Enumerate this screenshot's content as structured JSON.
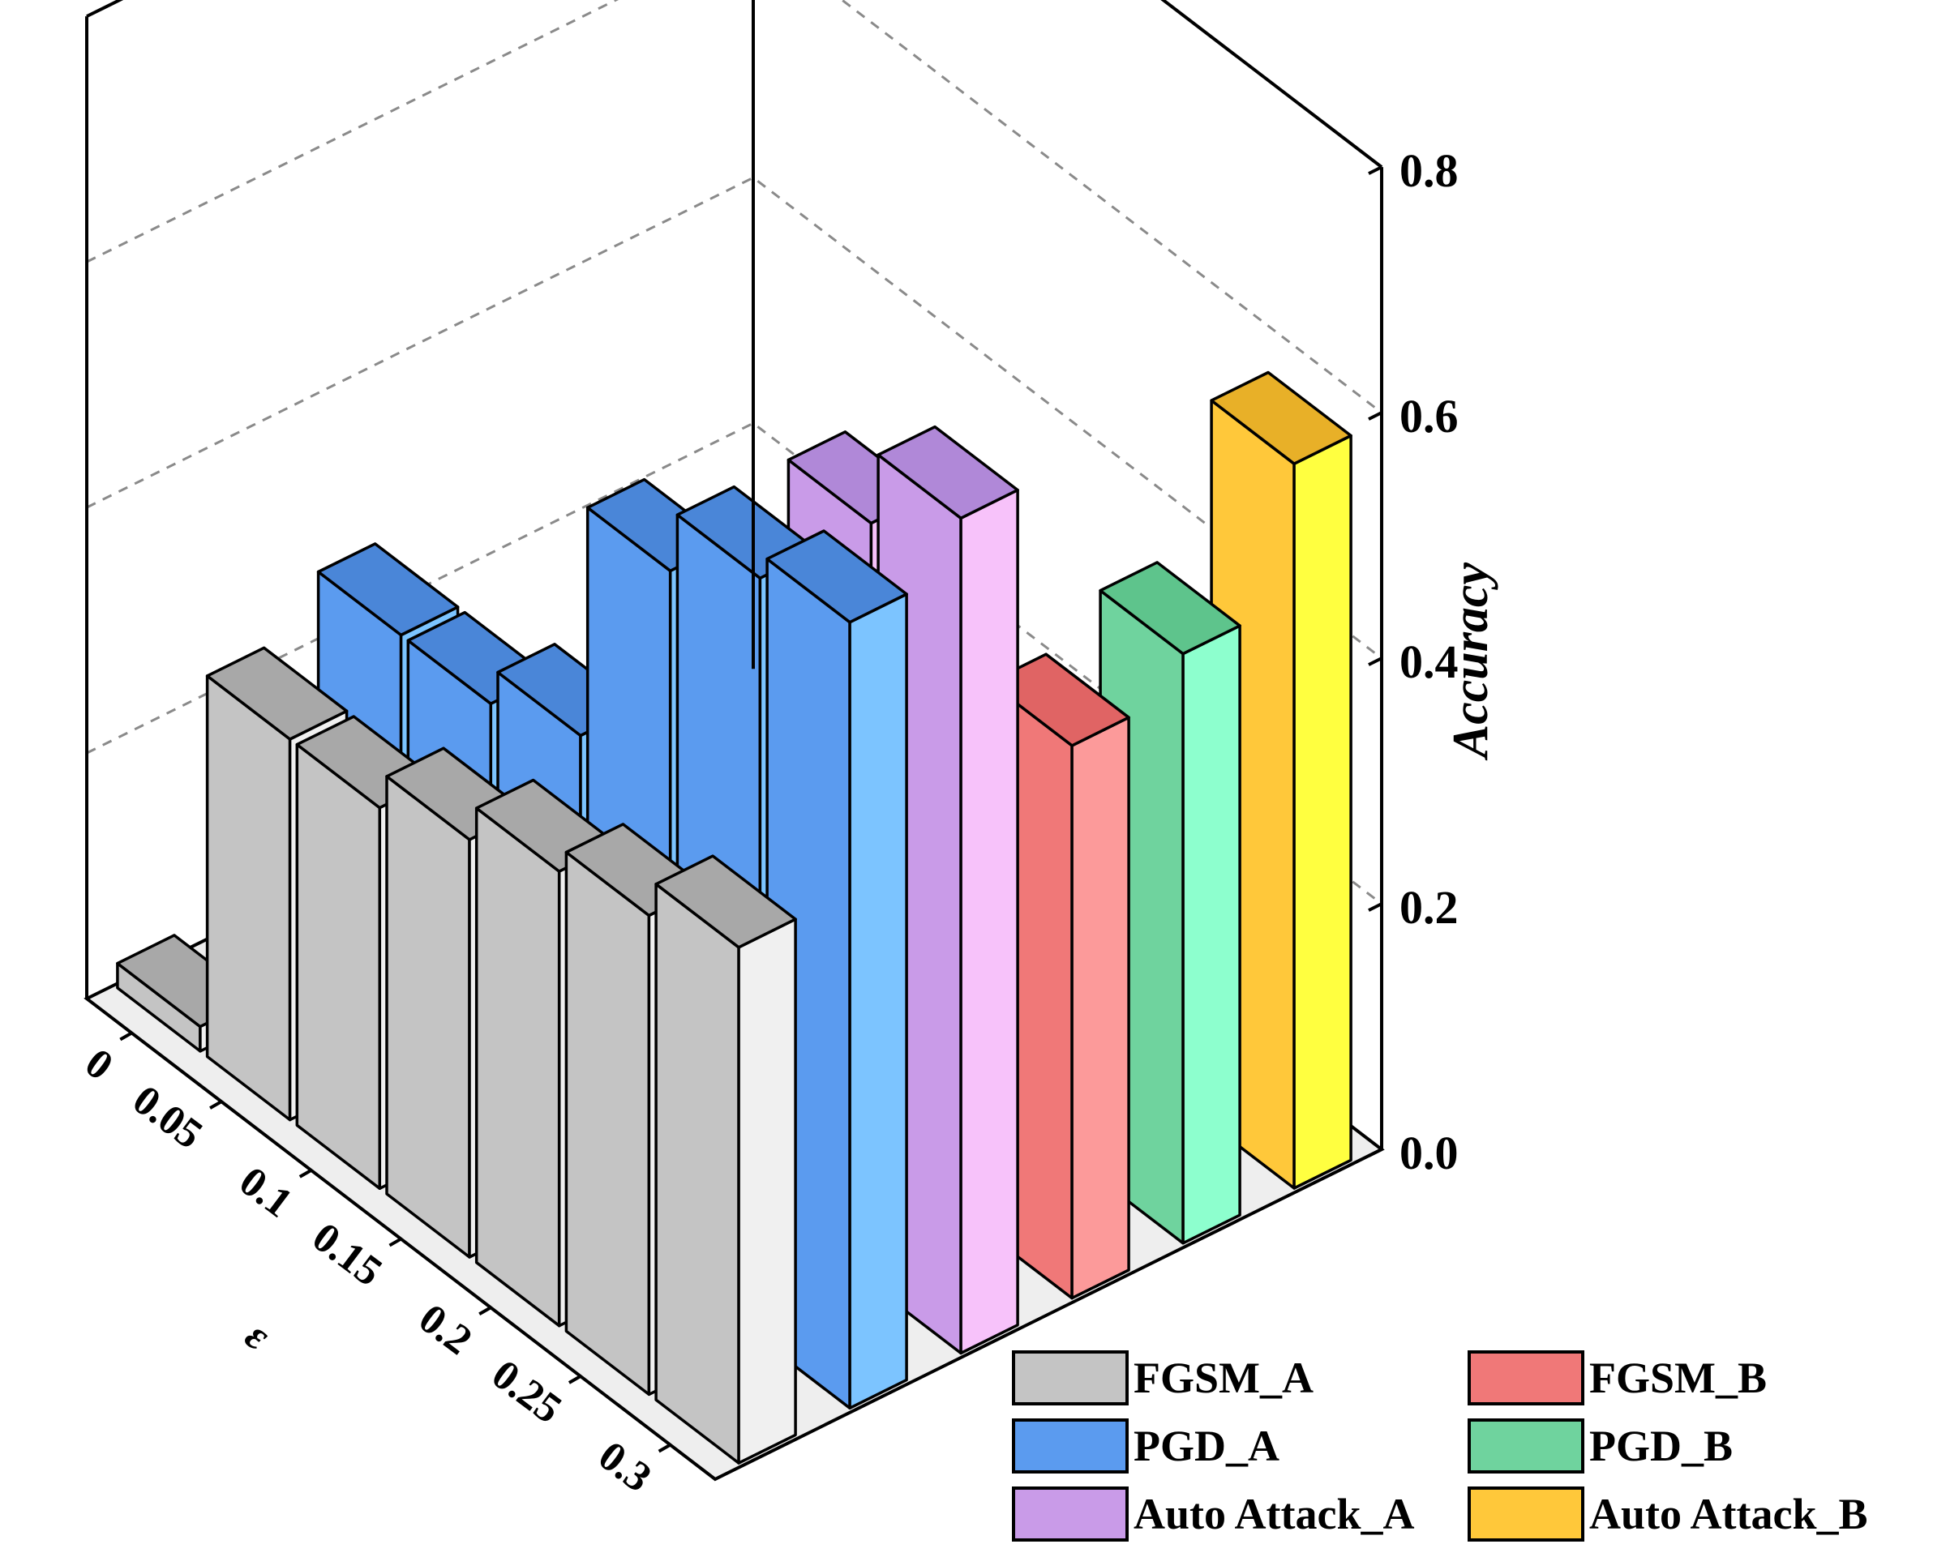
{
  "chart_data": {
    "type": "bar",
    "style": "3d",
    "x_axis_label": "ε",
    "z_axis_label": "Accuracy",
    "categories": [
      "0",
      "0.05",
      "0.1",
      "0.15",
      "0.2",
      "0.25",
      "0.3"
    ],
    "zlim": [
      0,
      0.8
    ],
    "z_ticks": [
      "0.0",
      "0.2",
      "0.4",
      "0.6",
      "0.8"
    ],
    "grid": true,
    "series": [
      {
        "name": "FGSM_A",
        "row": 0,
        "side_color": "#c4c4c4",
        "front_color": "#f0f0f0",
        "top_color": "#a8a8a8",
        "values": [
          0.02,
          0.31,
          0.31,
          0.34,
          0.37,
          0.39,
          0.42
        ]
      },
      {
        "name": "PGD_A",
        "row": 1,
        "side_color": "#5b9bef",
        "front_color": "#7cc4ff",
        "top_color": "#4a86d8",
        "values": [
          0.0,
          0.35,
          0.35,
          0.38,
          0.57,
          0.62,
          0.64
        ]
      },
      {
        "name": "Auto Attack_A",
        "row": 2,
        "side_color": "#c99be8",
        "front_color": "#f7c2fa",
        "top_color": "#b088d8",
        "values": [
          0.0,
          0.0,
          0.0,
          0.24,
          0.28,
          0.62,
          0.68
        ]
      },
      {
        "name": "FGSM_B",
        "row": 3,
        "side_color": "#f07878",
        "front_color": "#fc9a9a",
        "top_color": "#e06464",
        "values": [
          0.0,
          0.0,
          0.0,
          0.0,
          0.0,
          0.0,
          0.45
        ]
      },
      {
        "name": "PGD_B",
        "row": 4,
        "side_color": "#6fd39e",
        "front_color": "#8dffce",
        "top_color": "#5ec48c",
        "values": [
          0.0,
          0.0,
          0.0,
          0.0,
          0.0,
          0.0,
          0.48
        ]
      },
      {
        "name": "Auto Attack_B",
        "row": 5,
        "side_color": "#ffc83a",
        "front_color": "#ffff40",
        "top_color": "#e8b028",
        "values": [
          0.0,
          0.0,
          0.0,
          0.0,
          0.0,
          0.0,
          0.59
        ]
      }
    ],
    "legend": {
      "placement": "bottom-right",
      "entries": [
        "FGSM_A",
        "FGSM_B",
        "PGD_A",
        "PGD_B",
        "Auto Attack_A",
        "Auto Attack_B"
      ]
    }
  }
}
